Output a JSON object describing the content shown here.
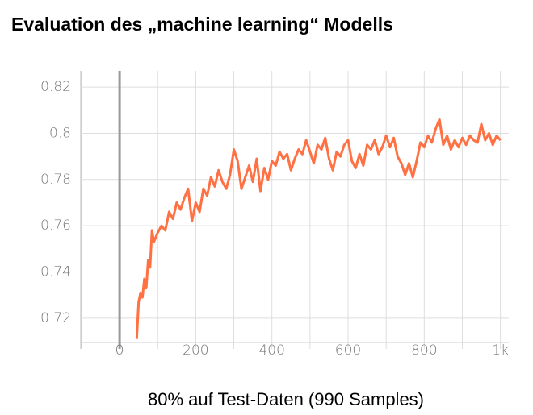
{
  "chart_data": {
    "type": "line",
    "title": "Evaluation des „machine learning“ Modells",
    "caption": "80% auf Test-Daten (990 Samples)",
    "x": [
      45,
      50,
      55,
      60,
      65,
      70,
      75,
      80,
      85,
      90,
      100,
      110,
      120,
      130,
      140,
      150,
      160,
      170,
      180,
      190,
      200,
      210,
      220,
      230,
      240,
      250,
      260,
      270,
      280,
      290,
      300,
      310,
      320,
      330,
      340,
      350,
      360,
      370,
      380,
      390,
      400,
      410,
      420,
      430,
      440,
      450,
      460,
      470,
      480,
      490,
      500,
      510,
      520,
      530,
      540,
      550,
      560,
      570,
      580,
      590,
      600,
      610,
      620,
      630,
      640,
      650,
      660,
      670,
      680,
      690,
      700,
      710,
      720,
      730,
      740,
      750,
      760,
      770,
      780,
      790,
      800,
      810,
      820,
      830,
      840,
      850,
      860,
      870,
      880,
      890,
      900,
      910,
      920,
      930,
      940,
      950,
      960,
      970,
      980,
      990,
      1000
    ],
    "series": [
      {
        "color": "#ff7043",
        "values": [
          0.711,
          0.727,
          0.731,
          0.729,
          0.737,
          0.733,
          0.745,
          0.742,
          0.758,
          0.753,
          0.757,
          0.76,
          0.758,
          0.766,
          0.763,
          0.77,
          0.767,
          0.772,
          0.776,
          0.762,
          0.77,
          0.766,
          0.776,
          0.773,
          0.781,
          0.777,
          0.784,
          0.779,
          0.776,
          0.782,
          0.793,
          0.788,
          0.776,
          0.781,
          0.786,
          0.779,
          0.789,
          0.775,
          0.785,
          0.78,
          0.788,
          0.786,
          0.792,
          0.789,
          0.791,
          0.784,
          0.789,
          0.793,
          0.791,
          0.797,
          0.792,
          0.787,
          0.795,
          0.793,
          0.798,
          0.789,
          0.784,
          0.792,
          0.79,
          0.795,
          0.797,
          0.788,
          0.785,
          0.791,
          0.786,
          0.795,
          0.793,
          0.797,
          0.791,
          0.794,
          0.799,
          0.794,
          0.798,
          0.79,
          0.787,
          0.782,
          0.787,
          0.781,
          0.788,
          0.796,
          0.794,
          0.799,
          0.796,
          0.802,
          0.806,
          0.795,
          0.799,
          0.793,
          0.797,
          0.794,
          0.798,
          0.795,
          0.799,
          0.797,
          0.796,
          0.804,
          0.797,
          0.8,
          0.795,
          0.799,
          0.797
        ]
      }
    ],
    "xlim": [
      -102,
      1022
    ],
    "xticks": [
      0,
      200,
      400,
      600,
      800,
      {
        "value": 1000,
        "label": "1k"
      }
    ],
    "x_minor_gridlines": [
      -100,
      100,
      300,
      500,
      700,
      900
    ],
    "ylim": [
      0.7095,
      0.827
    ],
    "yticks": [
      0.72,
      0.74,
      0.76,
      0.78,
      0.8,
      0.82
    ],
    "grid": true
  }
}
